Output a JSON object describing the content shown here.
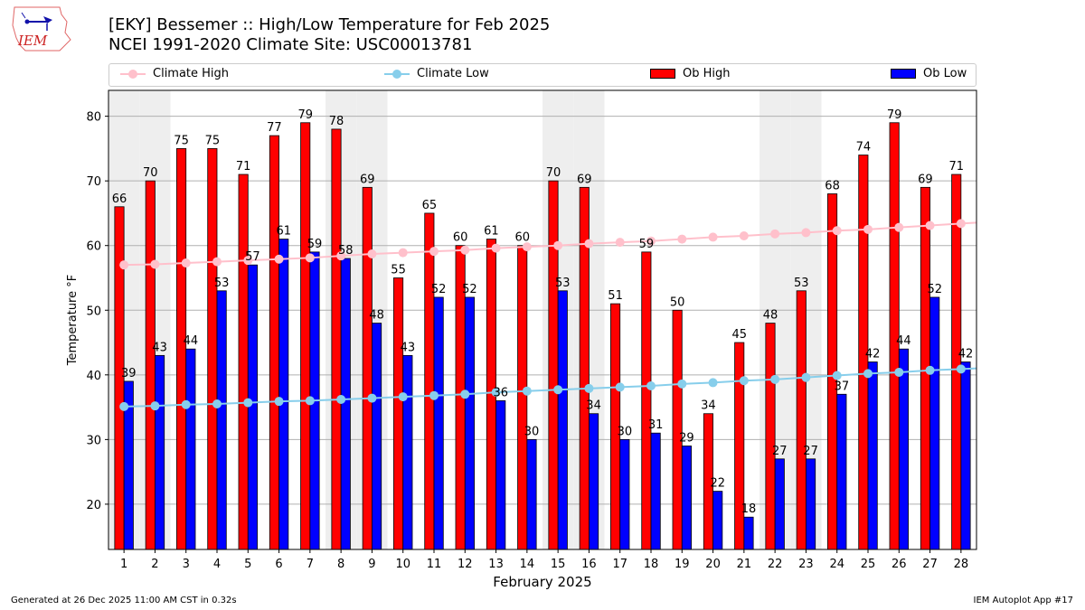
{
  "header": {
    "title_line1": "[EKY] Bessemer :: High/Low Temperature for Feb 2025",
    "title_line2": "NCEI 1991-2020 Climate Site: USC00013781",
    "logo_text": "IEM"
  },
  "legend": {
    "items": [
      {
        "label": "Climate High",
        "color": "#ffc0cb",
        "kind": "line"
      },
      {
        "label": "Climate Low",
        "color": "#87ceeb",
        "kind": "line"
      },
      {
        "label": "Ob High",
        "color": "#ff0000",
        "kind": "bar"
      },
      {
        "label": "Ob Low",
        "color": "#0000ff",
        "kind": "bar"
      }
    ]
  },
  "footer": {
    "generated": "Generated at 26 Dec 2025 11:00 AM CST in 0.32s",
    "app": "IEM Autoplot App #17"
  },
  "chart_data": {
    "type": "bar",
    "title": "[EKY] Bessemer :: High/Low Temperature for Feb 2025",
    "subtitle": "NCEI 1991-2020 Climate Site: USC00013781",
    "xlabel": "February 2025",
    "ylabel": "Temperature °F",
    "ylim": [
      13,
      84
    ],
    "yticks": [
      20,
      30,
      40,
      50,
      60,
      70,
      80
    ],
    "grid": true,
    "legend_position": "top (above plot)",
    "categories": [
      "1",
      "2",
      "3",
      "4",
      "5",
      "6",
      "7",
      "8",
      "9",
      "10",
      "11",
      "12",
      "13",
      "14",
      "15",
      "16",
      "17",
      "18",
      "19",
      "20",
      "21",
      "22",
      "23",
      "24",
      "25",
      "26",
      "27",
      "28"
    ],
    "weekend_shaded_days": [
      1,
      2,
      8,
      9,
      15,
      16,
      22,
      23
    ],
    "series": [
      {
        "name": "Ob High",
        "type": "bar",
        "color": "#ff0000",
        "values": [
          66,
          70,
          75,
          75,
          71,
          77,
          79,
          78,
          69,
          55,
          65,
          60,
          61,
          60,
          70,
          69,
          51,
          59,
          50,
          34,
          45,
          48,
          53,
          68,
          74,
          79,
          69,
          71
        ],
        "labels_shown": [
          true,
          true,
          true,
          true,
          true,
          true,
          true,
          true,
          true,
          true,
          true,
          true,
          true,
          true,
          true,
          true,
          true,
          true,
          true,
          true,
          true,
          true,
          true,
          true,
          true,
          true,
          true,
          true
        ]
      },
      {
        "name": "Ob Low",
        "type": "bar",
        "color": "#0000ff",
        "values": [
          39,
          43,
          44,
          53,
          57,
          61,
          59,
          58,
          48,
          43,
          52,
          52,
          36,
          30,
          53,
          34,
          30,
          31,
          29,
          22,
          18,
          27,
          27,
          37,
          42,
          44,
          52,
          42
        ]
      },
      {
        "name": "Climate High",
        "type": "line",
        "color": "#ffc0cb",
        "values": [
          57.0,
          57.1,
          57.3,
          57.5,
          57.7,
          57.9,
          58.1,
          58.4,
          58.7,
          58.9,
          59.1,
          59.3,
          59.6,
          59.8,
          60.0,
          60.3,
          60.5,
          60.7,
          61.0,
          61.3,
          61.5,
          61.8,
          62.0,
          62.3,
          62.5,
          62.8,
          63.1,
          63.4
        ]
      },
      {
        "name": "Climate Low",
        "type": "line",
        "color": "#87ceeb",
        "values": [
          35.1,
          35.2,
          35.4,
          35.5,
          35.7,
          35.9,
          36.0,
          36.2,
          36.4,
          36.6,
          36.8,
          37.0,
          37.3,
          37.5,
          37.7,
          37.9,
          38.1,
          38.3,
          38.6,
          38.8,
          39.1,
          39.3,
          39.6,
          39.9,
          40.2,
          40.4,
          40.7,
          40.9
        ]
      }
    ]
  }
}
